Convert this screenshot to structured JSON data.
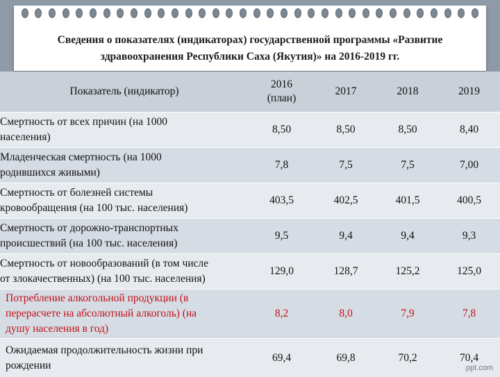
{
  "title_line1": "Сведения о показателях (индикаторах) государственной программы «Развитие",
  "title_line2": "здравоохранения Республики Саха (Якутия)» на 2016-2019 гг.",
  "header": {
    "indicator": "Показатель (индикатор)",
    "y2016_line1": "2016",
    "y2016_line2": "(план)",
    "y2017": "2017",
    "y2018": "2018",
    "y2019": "2019"
  },
  "rows": [
    {
      "line1": "Смертность от всех причин (на 1000",
      "line2": "населения)",
      "line3": "",
      "v2016": "8,50",
      "v2017": "8,50",
      "v2018": "8,50",
      "v2019": "8,40"
    },
    {
      "line1": "Младенческая смертность (на 1000",
      "line2": "родившихся живыми)",
      "line3": "",
      "v2016": "7,8",
      "v2017": "7,5",
      "v2018": "7,5",
      "v2019": "7,00"
    },
    {
      "line1": "Смертность от болезней системы",
      "line2": "кровообращения (на 100 тыс. населения)",
      "line3": "",
      "v2016": "403,5",
      "v2017": "402,5",
      "v2018": "401,5",
      "v2019": "400,5"
    },
    {
      "line1": "Смертность от дорожно-транспортных",
      "line2": "происшествий (на 100 тыс. населения)",
      "line3": "",
      "v2016": "9,5",
      "v2017": "9,4",
      "v2018": "9,4",
      "v2019": "9,3"
    },
    {
      "line1": "Смертность от новообразований (в том числе",
      "line2": "от злокачественных) (на 100 тыс. населения)",
      "line3": "",
      "v2016": "129,0",
      "v2017": "128,7",
      "v2018": "125,2",
      "v2019": "125,0"
    },
    {
      "line1": "Потребление алкогольной продукции (в",
      "line2": "перерасчете на абсолютный алкоголь) (на",
      "line3": "душу населения в год)",
      "v2016": "8,2",
      "v2017": "8,0",
      "v2018": "7,9",
      "v2019": "7,8"
    },
    {
      "line1": "Ожидаемая продолжительность жизни при",
      "line2": "рождении",
      "line3": "",
      "v2016": "69,4",
      "v2017": "69,8",
      "v2018": "70,2",
      "v2019": "70,4"
    }
  ],
  "colors": {
    "highlight_red": "#c0101a",
    "header_bg": "#c9d0d8"
  },
  "watermark": "ppt.com"
}
